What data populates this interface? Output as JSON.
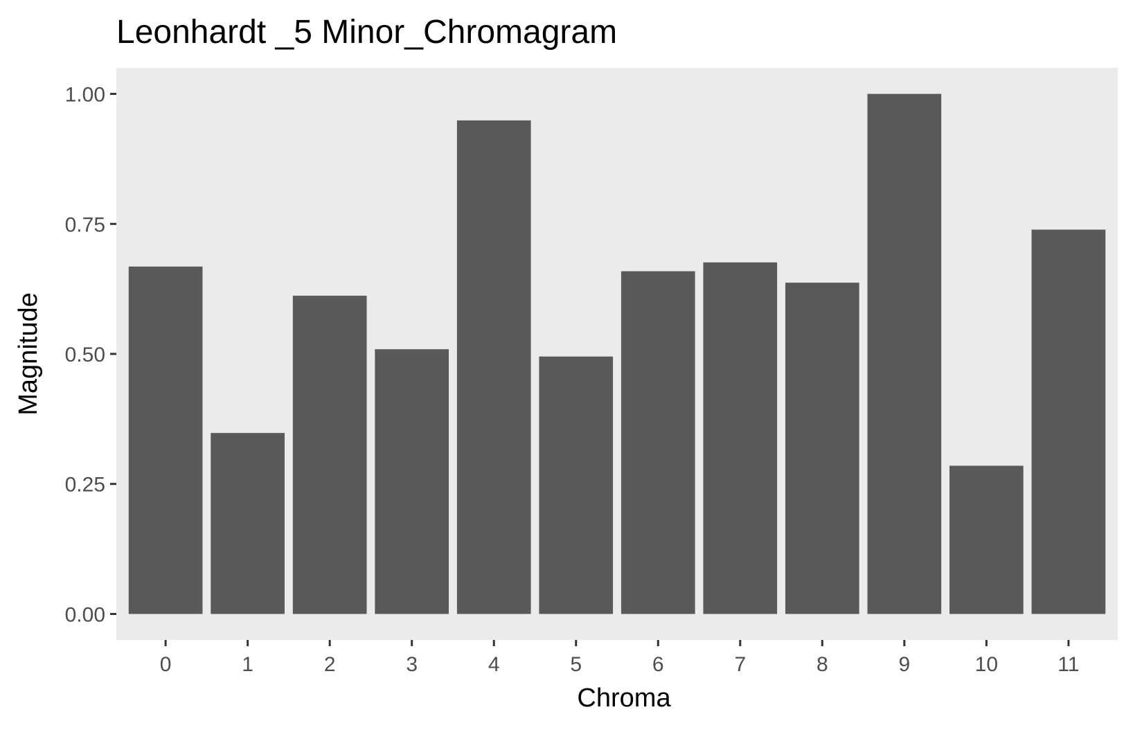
{
  "chart_data": {
    "type": "bar",
    "title": "Leonhardt _5 Minor_Chromagram",
    "xlabel": "Chroma",
    "ylabel": "Magnitude",
    "categories": [
      "0",
      "1",
      "2",
      "3",
      "4",
      "5",
      "6",
      "7",
      "8",
      "9",
      "10",
      "11"
    ],
    "values": [
      0.668,
      0.348,
      0.612,
      0.509,
      0.949,
      0.495,
      0.659,
      0.676,
      0.637,
      1.0,
      0.285,
      0.739
    ],
    "ylim": [
      -0.05,
      1.05
    ],
    "yticks": [
      0,
      0.25,
      0.5,
      0.75,
      1.0
    ],
    "ytick_labels": [
      "0.00",
      "0.25",
      "0.50",
      "0.75",
      "1.00"
    ],
    "grid": false,
    "legend": "none",
    "colors": {
      "bar": "#595959",
      "panel_background": "#ebebeb",
      "tick_mark": "#333333",
      "tick_label": "#4d4d4d"
    }
  }
}
